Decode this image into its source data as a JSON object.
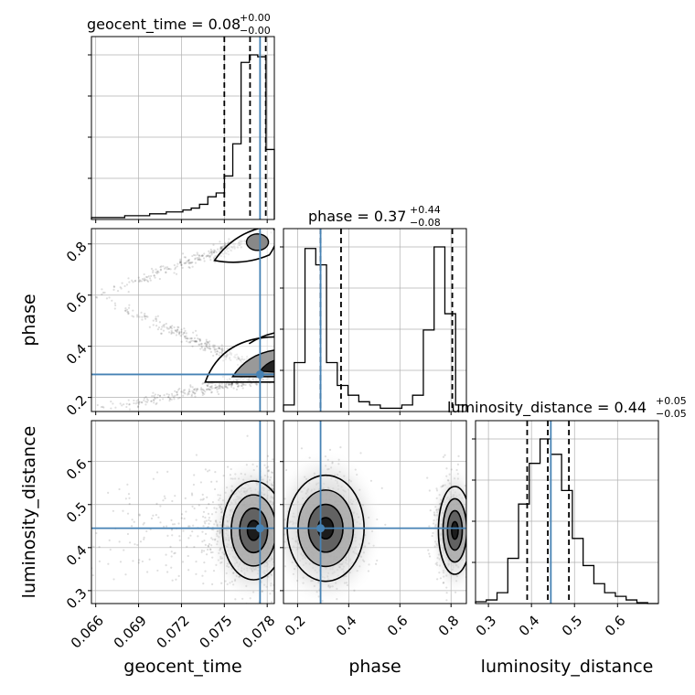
{
  "colors": {
    "truth": "#4682b4",
    "line": "#000000",
    "grid": "#b0b0b0",
    "sample": "#000000"
  },
  "chart_data": {
    "type": "corner",
    "parameters": [
      "geocent_time",
      "phase",
      "luminosity_distance"
    ],
    "ranges": {
      "geocent_time": [
        0.0657,
        0.0785
      ],
      "phase": [
        0.145,
        0.86
      ],
      "luminosity_distance": [
        0.27,
        0.695
      ]
    },
    "ticks": {
      "geocent_time": [
        "0.066",
        "0.069",
        "0.072",
        "0.075",
        "0.078"
      ],
      "phase": [
        "0.2",
        "0.4",
        "0.6",
        "0.8"
      ],
      "phase_left": [
        "0.2",
        "0.4",
        "0.6",
        "0.8"
      ],
      "luminosity_distance": [
        "0.3",
        "0.4",
        "0.5",
        "0.6"
      ],
      "luminosity_distance_left": [
        "0.3",
        "0.4",
        "0.5",
        "0.6"
      ]
    },
    "axis_labels": {
      "x": [
        "geocent_time",
        "phase",
        "luminosity_distance"
      ],
      "y": [
        "phase",
        "luminosity_distance"
      ]
    },
    "titles": [
      {
        "name": "geocent_time",
        "median": "0.08",
        "plus": "+0.00",
        "minus": "−0.00"
      },
      {
        "name": "phase",
        "median": "0.37",
        "plus": "+0.44",
        "minus": "−0.08"
      },
      {
        "name": "luminosity_distance",
        "median": "0.44",
        "plus": "+0.05",
        "minus": "−0.05"
      }
    ],
    "truths": {
      "geocent_time": 0.0775,
      "phase": 0.29,
      "luminosity_distance": 0.445
    },
    "quantiles": {
      "geocent_time": [
        0.075,
        0.0768,
        0.0779
      ],
      "phase": [
        0.29,
        0.37,
        0.805
      ],
      "luminosity_distance": [
        0.39,
        0.438,
        0.487
      ]
    },
    "histograms": {
      "geocent_time": {
        "edges_start": 0.0657,
        "edges_end": 0.0785,
        "counts": [
          1,
          1,
          1,
          1,
          2,
          2,
          2,
          3,
          3,
          4,
          4,
          5,
          6,
          8,
          12,
          14,
          23,
          40,
          83,
          87,
          86,
          37
        ]
      },
      "phase": {
        "edges_start": 0.145,
        "edges_end": 0.86,
        "counts": [
          4,
          30,
          100,
          90,
          30,
          16,
          10,
          6,
          4,
          2,
          2,
          4,
          10,
          50,
          101,
          60,
          4
        ]
      },
      "luminosity_distance": {
        "edges_start": 0.27,
        "edges_end": 0.695,
        "counts": [
          2,
          4,
          12,
          50,
          110,
          155,
          182,
          165,
          125,
          72,
          42,
          22,
          12,
          8,
          4,
          1,
          0
        ]
      }
    }
  }
}
